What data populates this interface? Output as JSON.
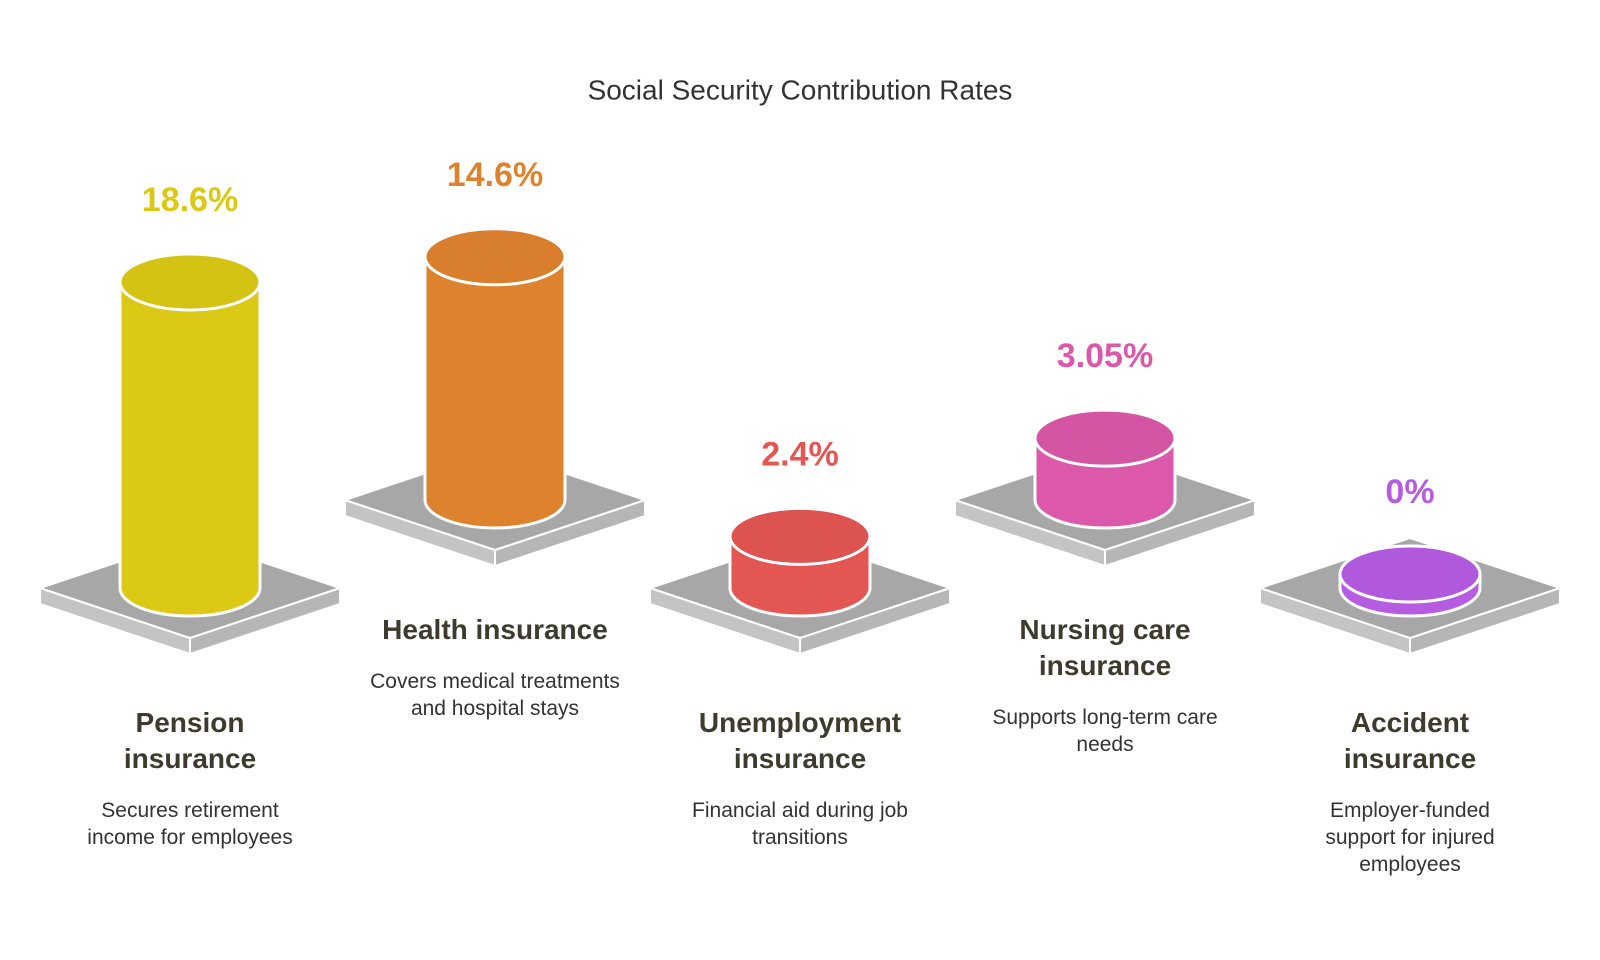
{
  "chart_data": {
    "type": "bar",
    "title": "Social Security Contribution Rates",
    "categories": [
      "Pension insurance",
      "Health insurance",
      "Unemployment insurance",
      "Nursing care insurance",
      "Accident insurance"
    ],
    "descriptions": [
      "Secures retirement income for employees",
      "Covers medical treatments and hospital stays",
      "Financial aid during job transitions",
      "Supports long-term care needs",
      "Employer-funded support for injured employees"
    ],
    "values": [
      18.6,
      14.6,
      2.4,
      3.05,
      0
    ],
    "value_labels": [
      "18.6%",
      "14.6%",
      "2.4%",
      "3.05%",
      "0%"
    ],
    "colors": [
      "#dcc915",
      "#df822d",
      "#e35652",
      "#dc58aa",
      "#b55ce3"
    ]
  }
}
